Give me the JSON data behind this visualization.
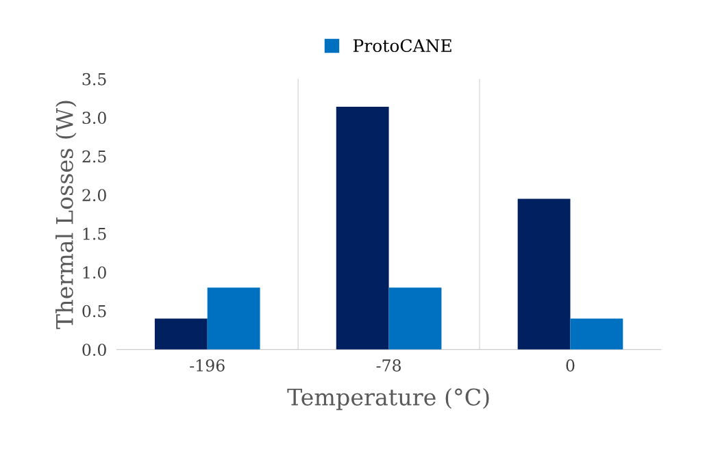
{
  "chart_data": {
    "type": "bar",
    "xlabel": "Temperature (°C)",
    "ylabel": "Thermal Losses (W)",
    "categories": [
      "-196",
      "-78",
      "0"
    ],
    "series": [
      {
        "color": "#002060",
        "values": [
          0.4,
          3.14,
          1.95
        ]
      },
      {
        "name": "ProtoCANE",
        "color": "#0070c0",
        "values": [
          0.8,
          0.8,
          0.4
        ]
      }
    ],
    "ylim": [
      0,
      3.5
    ],
    "yticks": [
      {
        "value": 0,
        "label": "0.0"
      },
      {
        "value": 0.5,
        "label": "0.5"
      },
      {
        "value": 1,
        "label": "1.0"
      },
      {
        "value": 1.5,
        "label": "1.5"
      },
      {
        "value": 2,
        "label": "2.0"
      },
      {
        "value": 2.5,
        "label": "2.5"
      },
      {
        "value": 3,
        "label": "3.0"
      },
      {
        "value": 3.5,
        "label": "3.5"
      }
    ],
    "grid": "x",
    "legend": "top"
  }
}
